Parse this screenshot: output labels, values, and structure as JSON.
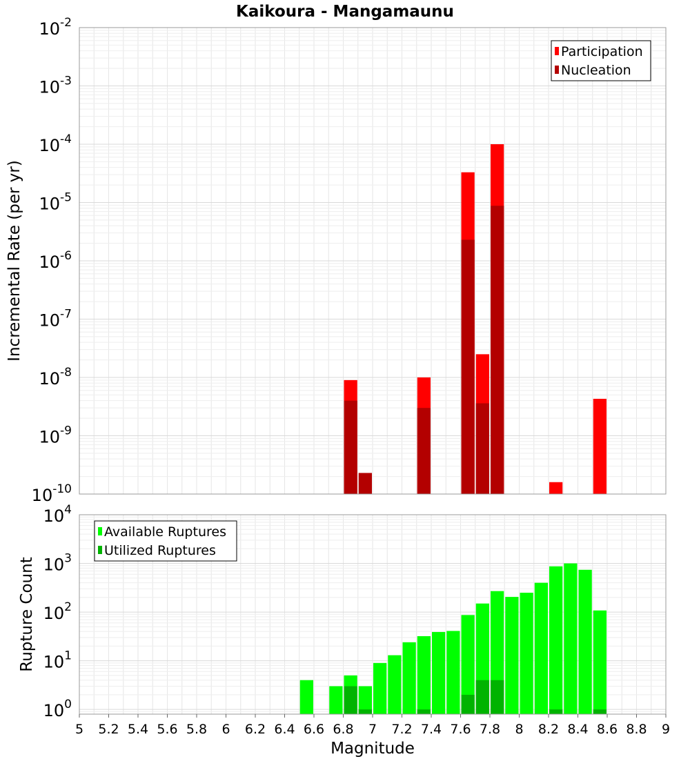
{
  "chart_data": [
    {
      "type": "bar",
      "title": "Kaikoura - Mangamaunu",
      "xlabel": "",
      "ylabel": "Incremental Rate (per yr)",
      "y_scale": "log",
      "ylim": [
        1e-10,
        0.01
      ],
      "xlim": [
        5,
        9
      ],
      "ytick_labels": [
        {
          "base": "10",
          "exp": "-10"
        },
        {
          "base": "10",
          "exp": "-9"
        },
        {
          "base": "10",
          "exp": "-8"
        },
        {
          "base": "10",
          "exp": "-7"
        },
        {
          "base": "10",
          "exp": "-6"
        },
        {
          "base": "10",
          "exp": "-5"
        },
        {
          "base": "10",
          "exp": "-4"
        },
        {
          "base": "10",
          "exp": "-3"
        },
        {
          "base": "10",
          "exp": "-2"
        }
      ],
      "legend": {
        "placement": "top-right"
      },
      "grid": true,
      "series": [
        {
          "name": "Participation",
          "color": "#ff0000",
          "points": [
            {
              "x": 6.85,
              "y": 9e-09
            },
            {
              "x": 7.35,
              "y": 1e-08
            },
            {
              "x": 7.65,
              "y": 3.3e-05
            },
            {
              "x": 7.75,
              "y": 2.5e-08
            },
            {
              "x": 7.85,
              "y": 0.0001
            },
            {
              "x": 8.25,
              "y": 1.6e-10
            },
            {
              "x": 8.55,
              "y": 4.3e-09
            }
          ]
        },
        {
          "name": "Nucleation",
          "color": "#b30000",
          "points": [
            {
              "x": 6.85,
              "y": 4e-09
            },
            {
              "x": 6.95,
              "y": 2.3e-10
            },
            {
              "x": 7.35,
              "y": 3e-09
            },
            {
              "x": 7.65,
              "y": 2.3e-06
            },
            {
              "x": 7.75,
              "y": 3.6e-09
            },
            {
              "x": 7.85,
              "y": 8.8e-06
            }
          ]
        }
      ]
    },
    {
      "type": "bar",
      "title": "",
      "xlabel": "Magnitude",
      "ylabel": "Rupture Count",
      "y_scale": "log",
      "ylim": [
        0.8,
        10000
      ],
      "xlim": [
        5,
        9
      ],
      "xtick_labels": [
        "5",
        "5.2",
        "5.4",
        "5.6",
        "5.8",
        "6",
        "6.2",
        "6.4",
        "6.6",
        "6.8",
        "7",
        "7.2",
        "7.4",
        "7.6",
        "7.8",
        "8",
        "8.2",
        "8.4",
        "8.6",
        "8.8",
        "9"
      ],
      "ytick_labels": [
        {
          "base": "10",
          "exp": "0"
        },
        {
          "base": "10",
          "exp": "1"
        },
        {
          "base": "10",
          "exp": "2"
        },
        {
          "base": "10",
          "exp": "3"
        },
        {
          "base": "10",
          "exp": "4"
        }
      ],
      "legend": {
        "placement": "top-left"
      },
      "grid": true,
      "series": [
        {
          "name": "Available Ruptures",
          "color": "#00ff00",
          "points": [
            {
              "x": 6.55,
              "y": 4
            },
            {
              "x": 6.75,
              "y": 3
            },
            {
              "x": 6.85,
              "y": 5
            },
            {
              "x": 6.95,
              "y": 3
            },
            {
              "x": 7.05,
              "y": 9
            },
            {
              "x": 7.15,
              "y": 13
            },
            {
              "x": 7.25,
              "y": 24
            },
            {
              "x": 7.35,
              "y": 32
            },
            {
              "x": 7.45,
              "y": 39
            },
            {
              "x": 7.55,
              "y": 41
            },
            {
              "x": 7.65,
              "y": 87
            },
            {
              "x": 7.75,
              "y": 150
            },
            {
              "x": 7.85,
              "y": 270
            },
            {
              "x": 7.95,
              "y": 205
            },
            {
              "x": 8.05,
              "y": 250
            },
            {
              "x": 8.15,
              "y": 400
            },
            {
              "x": 8.25,
              "y": 870
            },
            {
              "x": 8.35,
              "y": 1000
            },
            {
              "x": 8.45,
              "y": 740
            },
            {
              "x": 8.55,
              "y": 108
            }
          ]
        },
        {
          "name": "Utilized Ruptures",
          "color": "#00b300",
          "points": [
            {
              "x": 6.85,
              "y": 3
            },
            {
              "x": 6.95,
              "y": 1
            },
            {
              "x": 7.35,
              "y": 1
            },
            {
              "x": 7.65,
              "y": 2
            },
            {
              "x": 7.75,
              "y": 4
            },
            {
              "x": 7.85,
              "y": 4
            },
            {
              "x": 8.25,
              "y": 1
            },
            {
              "x": 8.55,
              "y": 1
            }
          ]
        }
      ]
    }
  ]
}
